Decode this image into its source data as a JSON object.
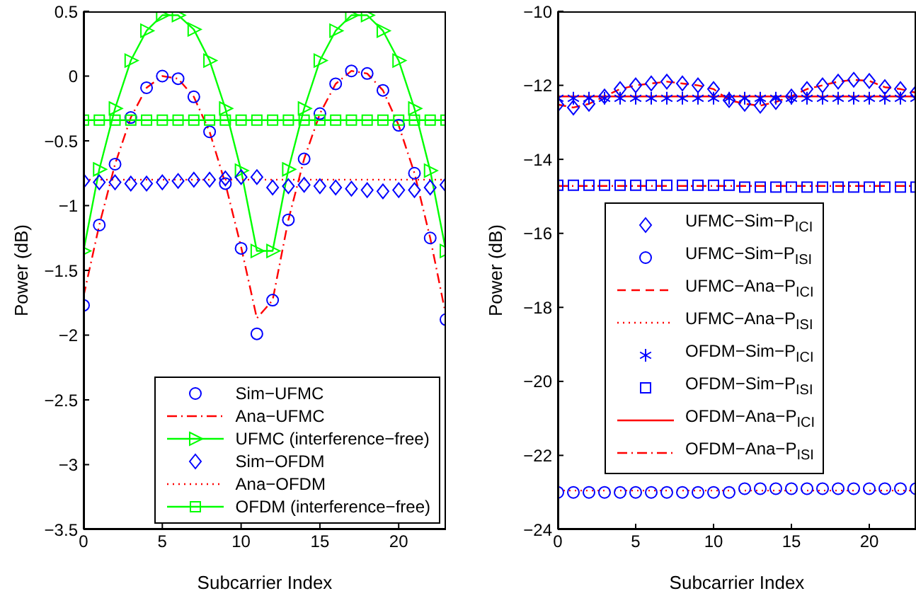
{
  "chart_data": [
    {
      "type": "line",
      "xlabel": "Subcarrier Index",
      "ylabel": "Power (dB)",
      "x": [
        0,
        1,
        2,
        3,
        4,
        5,
        6,
        7,
        8,
        9,
        10,
        11,
        12,
        13,
        14,
        15,
        16,
        17,
        18,
        19,
        20,
        21,
        22,
        23
      ],
      "xlim": [
        0,
        23
      ],
      "xticks": [
        0,
        5,
        10,
        15,
        20
      ],
      "ylim": [
        -3.5,
        0.5
      ],
      "yticks": [
        -3.5,
        -3,
        -2.5,
        -2,
        -1.5,
        -1,
        -0.5,
        0,
        0.5
      ],
      "grid": false,
      "legend": "bottom right",
      "series": [
        {
          "name": "Sim−UFMC",
          "type": "scatter",
          "marker": "circle",
          "color": "#0000ff",
          "values": [
            -1.77,
            -1.15,
            -0.68,
            -0.32,
            -0.09,
            0.0,
            -0.02,
            -0.16,
            -0.43,
            -0.83,
            -1.33,
            -1.99,
            -1.73,
            -1.11,
            -0.64,
            -0.29,
            -0.06,
            0.04,
            0.02,
            -0.11,
            -0.38,
            -0.75,
            -1.25,
            -1.88
          ]
        },
        {
          "name": "Ana−UFMC",
          "type": "line",
          "line_style": "dashdot",
          "color": "#ff0000",
          "values": [
            -1.7,
            -1.15,
            -0.68,
            -0.32,
            -0.09,
            0.0,
            -0.02,
            -0.16,
            -0.43,
            -0.83,
            -1.32,
            -1.87,
            -1.73,
            -1.11,
            -0.64,
            -0.29,
            -0.06,
            0.04,
            0.02,
            -0.11,
            -0.38,
            -0.75,
            -1.25,
            -1.85
          ]
        },
        {
          "name": "UFMC (interference−free)",
          "type": "line",
          "line_style": "solid",
          "marker": "triangle",
          "color": "#00ff00",
          "values": [
            -1.35,
            -0.72,
            -0.25,
            0.12,
            0.35,
            0.47,
            0.47,
            0.36,
            0.12,
            -0.25,
            -0.73,
            -1.35,
            -1.35,
            -0.72,
            -0.25,
            0.12,
            0.35,
            0.47,
            0.47,
            0.35,
            0.12,
            -0.25,
            -0.73,
            -1.35
          ]
        },
        {
          "name": "Sim−OFDM",
          "type": "scatter",
          "marker": "diamond",
          "color": "#0000ff",
          "values": [
            -0.81,
            -0.82,
            -0.82,
            -0.83,
            -0.83,
            -0.82,
            -0.81,
            -0.8,
            -0.8,
            -0.79,
            -0.78,
            -0.78,
            -0.86,
            -0.85,
            -0.84,
            -0.85,
            -0.86,
            -0.87,
            -0.88,
            -0.89,
            -0.88,
            -0.88,
            -0.86,
            -0.84
          ]
        },
        {
          "name": "Ana−OFDM",
          "type": "line",
          "line_style": "dotted",
          "color": "#ff0000",
          "values": [
            -0.8,
            -0.8,
            -0.8,
            -0.8,
            -0.8,
            -0.8,
            -0.8,
            -0.8,
            -0.8,
            -0.8,
            -0.8,
            -0.8,
            -0.8,
            -0.8,
            -0.8,
            -0.8,
            -0.8,
            -0.8,
            -0.8,
            -0.8,
            -0.8,
            -0.8,
            -0.8,
            -0.8
          ]
        },
        {
          "name": "OFDM (interference−free)",
          "type": "line",
          "line_style": "solid",
          "marker": "square",
          "color": "#00ff00",
          "values": [
            -0.34,
            -0.34,
            -0.34,
            -0.34,
            -0.34,
            -0.34,
            -0.34,
            -0.34,
            -0.34,
            -0.34,
            -0.34,
            -0.34,
            -0.34,
            -0.34,
            -0.34,
            -0.34,
            -0.34,
            -0.34,
            -0.34,
            -0.34,
            -0.34,
            -0.34,
            -0.34,
            -0.34
          ]
        }
      ]
    },
    {
      "type": "line",
      "xlabel": "Subcarrier Index",
      "ylabel": "Power (dB)",
      "x": [
        0,
        1,
        2,
        3,
        4,
        5,
        6,
        7,
        8,
        9,
        10,
        11,
        12,
        13,
        14,
        15,
        16,
        17,
        18,
        19,
        20,
        21,
        22,
        23
      ],
      "xlim": [
        0,
        23
      ],
      "xticks": [
        0,
        5,
        10,
        15,
        20
      ],
      "ylim": [
        -24,
        -10
      ],
      "yticks": [
        -24,
        -22,
        -20,
        -18,
        -16,
        -14,
        -12,
        -10
      ],
      "grid": false,
      "legend": "left",
      "series": [
        {
          "name": "UFMC−Sim−P$_{ICI}$",
          "type": "scatter",
          "marker": "diamond",
          "color": "#0000ff",
          "values": [
            -12.52,
            -12.6,
            -12.5,
            -12.3,
            -12.1,
            -12.0,
            -11.95,
            -11.9,
            -11.95,
            -12.0,
            -12.1,
            -12.4,
            -12.5,
            -12.55,
            -12.45,
            -12.3,
            -12.1,
            -12.0,
            -11.9,
            -11.85,
            -11.88,
            -12.05,
            -12.1,
            -12.2
          ]
        },
        {
          "name": "UFMC−Sim−P$_{ISI}$",
          "type": "scatter",
          "marker": "circle",
          "color": "#0000ff",
          "values": [
            -23.0,
            -23.0,
            -23.0,
            -23.0,
            -23.0,
            -23.0,
            -23.0,
            -23.0,
            -23.0,
            -23.0,
            -23.0,
            -23.0,
            -22.9,
            -22.9,
            -22.9,
            -22.9,
            -22.9,
            -22.9,
            -22.9,
            -22.9,
            -22.9,
            -22.9,
            -22.9,
            -22.9
          ]
        },
        {
          "name": "UFMC−Ana−P$_{ICI}$",
          "type": "line",
          "line_style": "dashed",
          "color": "#ff0000",
          "values": [
            -12.52,
            -12.6,
            -12.5,
            -12.3,
            -12.1,
            -12.0,
            -11.95,
            -11.9,
            -11.95,
            -12.0,
            -12.1,
            -12.4,
            -12.5,
            -12.55,
            -12.45,
            -12.3,
            -12.1,
            -12.0,
            -11.9,
            -11.85,
            -11.88,
            -12.05,
            -12.1,
            -12.2
          ]
        },
        {
          "name": "UFMC−Ana−P$_{ISI}$",
          "type": "line",
          "line_style": "dotted",
          "color": "#ff0000",
          "values": [
            -22.95,
            -22.95,
            -22.95,
            -22.95,
            -22.95,
            -22.95,
            -22.95,
            -22.95,
            -22.95,
            -22.95,
            -22.95,
            -22.95,
            -22.95,
            -22.95,
            -22.95,
            -22.95,
            -22.95,
            -22.95,
            -22.95,
            -22.95,
            -22.95,
            -22.95,
            -22.95,
            -22.95
          ]
        },
        {
          "name": "OFDM−Sim−P$_{ICI}$",
          "type": "scatter",
          "marker": "cross",
          "color": "#0000ff",
          "values": [
            -12.35,
            -12.35,
            -12.35,
            -12.35,
            -12.35,
            -12.35,
            -12.35,
            -12.35,
            -12.35,
            -12.35,
            -12.35,
            -12.35,
            -12.35,
            -12.35,
            -12.35,
            -12.35,
            -12.35,
            -12.35,
            -12.35,
            -12.35,
            -12.35,
            -12.35,
            -12.35,
            -12.35
          ]
        },
        {
          "name": "OFDM−Sim−P$_{ISI}$",
          "type": "scatter",
          "marker": "square",
          "color": "#0000ff",
          "values": [
            -14.7,
            -14.7,
            -14.7,
            -14.7,
            -14.7,
            -14.7,
            -14.7,
            -14.7,
            -14.7,
            -14.7,
            -14.7,
            -14.7,
            -14.75,
            -14.75,
            -14.75,
            -14.75,
            -14.75,
            -14.75,
            -14.75,
            -14.75,
            -14.75,
            -14.75,
            -14.75,
            -14.75
          ]
        },
        {
          "name": "OFDM−Ana−P$_{ICI}$",
          "type": "line",
          "line_style": "solid",
          "color": "#ff0000",
          "values": [
            -12.3,
            -12.3,
            -12.3,
            -12.3,
            -12.3,
            -12.3,
            -12.3,
            -12.3,
            -12.3,
            -12.3,
            -12.3,
            -12.3,
            -12.3,
            -12.3,
            -12.3,
            -12.3,
            -12.3,
            -12.3,
            -12.3,
            -12.3,
            -12.3,
            -12.3,
            -12.3,
            -12.3
          ]
        },
        {
          "name": "OFDM−Ana−P$_{ISI}$",
          "type": "line",
          "line_style": "dashdot",
          "color": "#ff0000",
          "values": [
            -14.72,
            -14.72,
            -14.72,
            -14.72,
            -14.72,
            -14.72,
            -14.72,
            -14.72,
            -14.72,
            -14.72,
            -14.72,
            -14.72,
            -14.72,
            -14.72,
            -14.72,
            -14.72,
            -14.72,
            -14.72,
            -14.72,
            -14.72,
            -14.72,
            -14.72,
            -14.72,
            -14.72
          ]
        }
      ]
    }
  ]
}
